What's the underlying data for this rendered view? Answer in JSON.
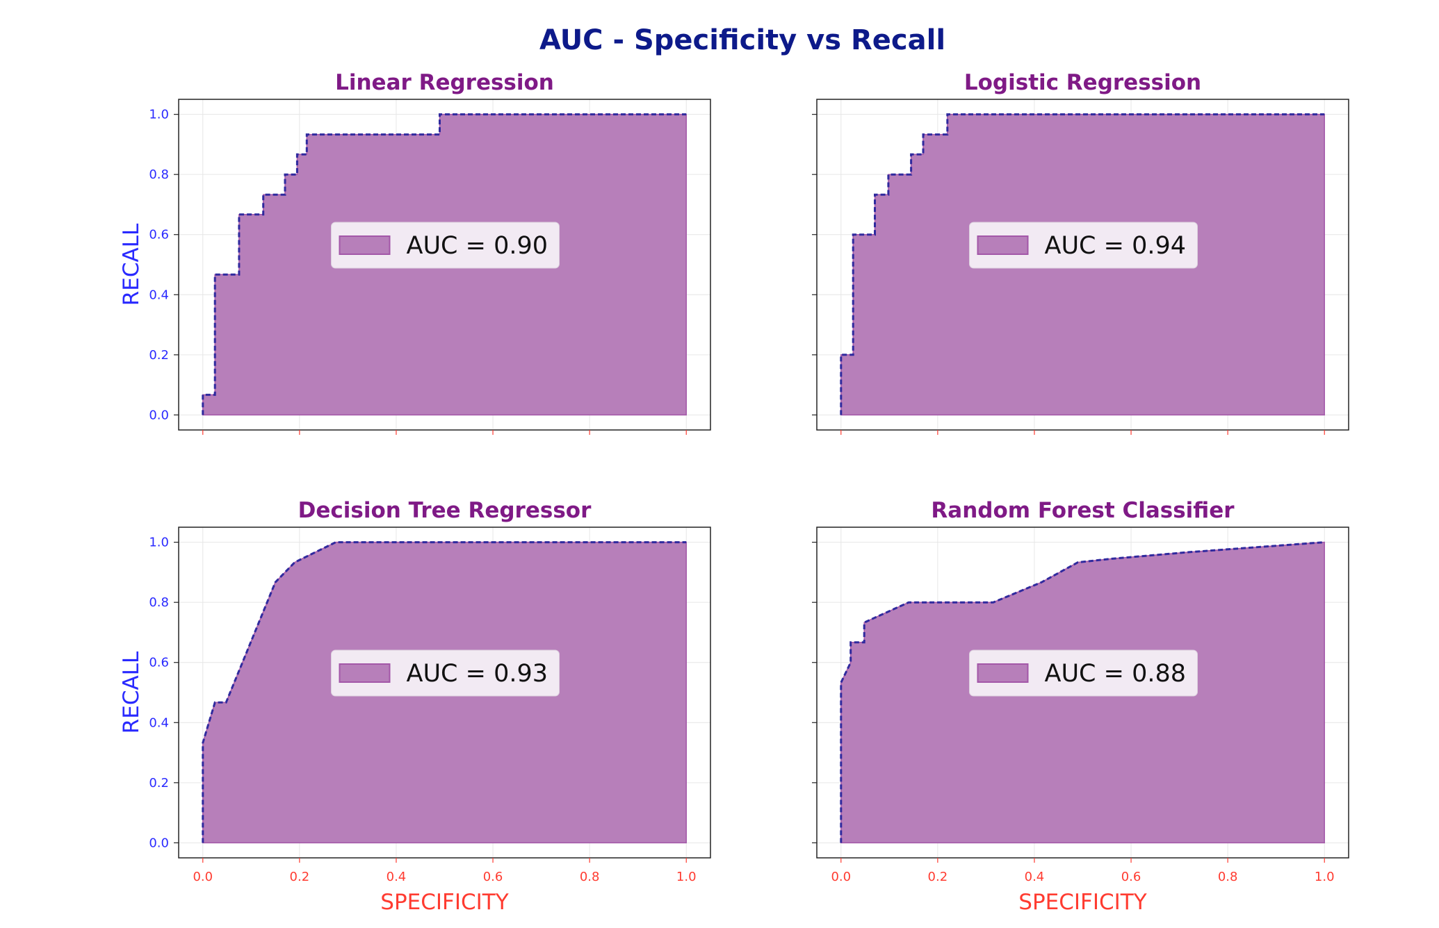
{
  "figure": {
    "title": "AUC - Specificity vs Recall",
    "xlabel": "SPECIFICITY",
    "ylabel": "RECALL",
    "colors": {
      "title": "#0d1a8a",
      "panel_title": "#7f1a86",
      "fill": "#b77fba",
      "line": "#2f2a9e",
      "ytick": "#2a2aff",
      "xtick": "#ff3b30"
    }
  },
  "chart_data": [
    {
      "type": "area",
      "title": "Linear Regression",
      "legend": "AUC = 0.90",
      "legend_loc": "center",
      "xlim": [
        -0.05,
        1.05
      ],
      "ylim": [
        -0.05,
        1.05
      ],
      "grid": true,
      "x": [
        0.0,
        0.0,
        0.025,
        0.025,
        0.075,
        0.075,
        0.125,
        0.125,
        0.17,
        0.17,
        0.195,
        0.195,
        0.215,
        0.215,
        0.49,
        0.49,
        1.0,
        1.0
      ],
      "y": [
        0.0,
        0.067,
        0.067,
        0.467,
        0.467,
        0.667,
        0.667,
        0.733,
        0.733,
        0.8,
        0.8,
        0.867,
        0.867,
        0.933,
        0.933,
        1.0,
        1.0,
        0.0
      ]
    },
    {
      "type": "area",
      "title": "Logistic Regression",
      "legend": "AUC = 0.94",
      "legend_loc": "center",
      "xlim": [
        -0.05,
        1.05
      ],
      "ylim": [
        -0.05,
        1.05
      ],
      "grid": true,
      "x": [
        0.0,
        0.0,
        0.025,
        0.025,
        0.07,
        0.07,
        0.098,
        0.098,
        0.145,
        0.145,
        0.17,
        0.17,
        0.22,
        0.22,
        1.0,
        1.0
      ],
      "y": [
        0.0,
        0.2,
        0.2,
        0.6,
        0.6,
        0.733,
        0.733,
        0.8,
        0.8,
        0.867,
        0.867,
        0.933,
        0.933,
        1.0,
        1.0,
        0.0
      ]
    },
    {
      "type": "area",
      "title": "Decision Tree Regressor",
      "legend": "AUC = 0.93",
      "legend_loc": "center",
      "xlim": [
        -0.05,
        1.05
      ],
      "ylim": [
        -0.05,
        1.05
      ],
      "grid": true,
      "x": [
        0.0,
        0.0,
        0.025,
        0.048,
        0.15,
        0.19,
        0.275,
        1.0,
        1.0
      ],
      "y": [
        0.0,
        0.333,
        0.467,
        0.467,
        0.867,
        0.933,
        1.0,
        1.0,
        0.0
      ]
    },
    {
      "type": "area",
      "title": "Random Forest Classifier",
      "legend": "AUC = 0.88",
      "legend_loc": "center",
      "xlim": [
        -0.05,
        1.05
      ],
      "ylim": [
        -0.05,
        1.05
      ],
      "grid": true,
      "x": [
        0.0,
        0.0,
        0.02,
        0.02,
        0.048,
        0.048,
        0.14,
        0.315,
        0.415,
        0.49,
        0.56,
        0.72,
        1.0,
        1.0
      ],
      "y": [
        0.0,
        0.533,
        0.6,
        0.667,
        0.667,
        0.733,
        0.8,
        0.8,
        0.867,
        0.933,
        0.945,
        0.967,
        1.0,
        0.0
      ]
    }
  ],
  "ticks": {
    "x": [
      "0.0",
      "0.2",
      "0.4",
      "0.6",
      "0.8",
      "1.0"
    ],
    "y": [
      "0.0",
      "0.2",
      "0.4",
      "0.6",
      "0.8",
      "1.0"
    ]
  }
}
